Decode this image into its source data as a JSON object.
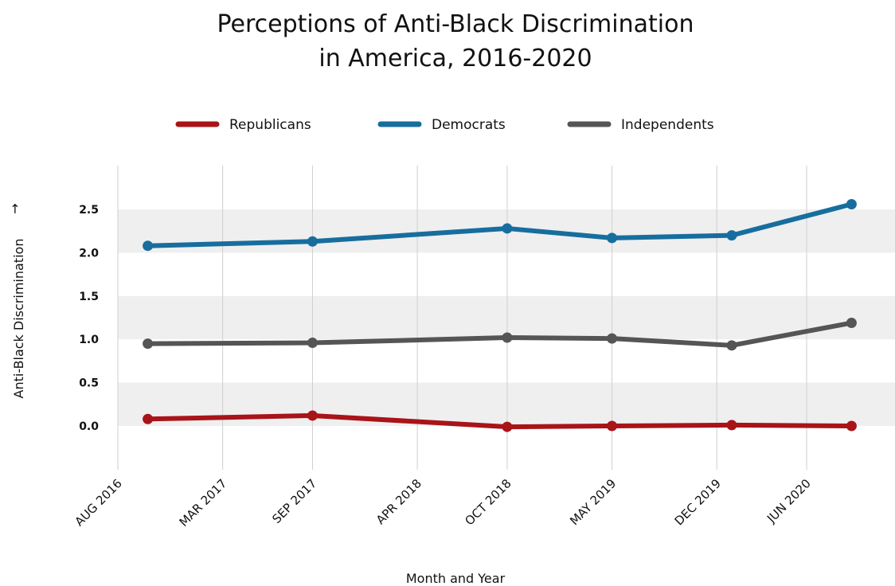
{
  "chart_data": {
    "type": "line",
    "title_lines": [
      "Perceptions of Anti-Black Discrimination",
      "in America, 2016-2020"
    ],
    "xlabel": "Month and Year",
    "ylabel": "Anti-Black Discrimination",
    "ylabel_arrow": "→",
    "x_ticks": [
      "AUG 2016",
      "MAR 2017",
      "SEP 2017",
      "APR 2018",
      "OCT 2018",
      "MAY 2019",
      "DEC 2019",
      "JUN 2020"
    ],
    "y_ticks": [
      "0.0",
      "0.5",
      "1.0",
      "1.5",
      "2.0",
      "2.5"
    ],
    "ylim": [
      -0.45,
      2.8
    ],
    "grid": "vertical lines and alternating horizontal bands",
    "legend_position": "top-center",
    "x": [
      "2016-10",
      "2017-09",
      "2018-10",
      "2019-05",
      "2020-01",
      "2020-09"
    ],
    "series": [
      {
        "name": "Republicans",
        "color": "#a81418",
        "values": [
          0.08,
          0.12,
          -0.01,
          0.0,
          0.01,
          0.0
        ]
      },
      {
        "name": "Democrats",
        "color": "#176e9e",
        "values": [
          2.08,
          2.13,
          2.28,
          2.17,
          2.2,
          2.56
        ]
      },
      {
        "name": "Independents",
        "color": "#555555",
        "values": [
          0.95,
          0.96,
          1.02,
          1.01,
          0.93,
          1.19
        ]
      }
    ]
  }
}
